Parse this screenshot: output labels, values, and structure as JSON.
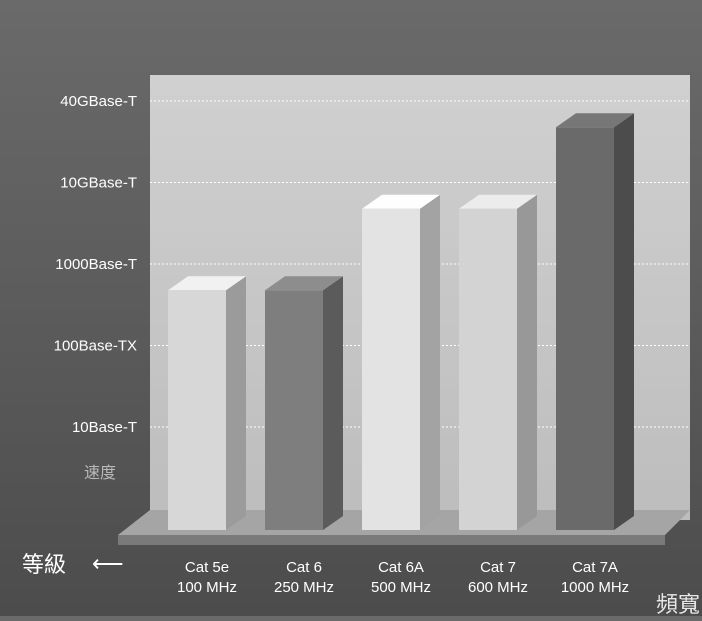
{
  "chart_data": {
    "type": "bar",
    "style": "3d",
    "y_levels": [
      "10Base-T",
      "100Base-TX",
      "1000Base-T",
      "10GBase-T",
      "40GBase-T"
    ],
    "categories": [
      {
        "name": "Cat 5e",
        "bandwidth": "100 MHz"
      },
      {
        "name": "Cat 6",
        "bandwidth": "250 MHz"
      },
      {
        "name": "Cat 6A",
        "bandwidth": "500 MHz"
      },
      {
        "name": "Cat 7",
        "bandwidth": "600 MHz"
      },
      {
        "name": "Cat 7A",
        "bandwidth": "1000 MHz"
      }
    ],
    "values": [
      2.8,
      2.8,
      3.8,
      3.8,
      4.8
    ],
    "ylabel": "速度",
    "x_axis_title": "等級",
    "arrow": "⟵",
    "corner_label": "頻寬",
    "grid": true,
    "colors": {
      "bars": [
        "#d7d7d7",
        "#7e7e7e",
        "#e3e3e3",
        "#d3d3d3",
        "#6a6a6a"
      ],
      "wall": "#c4c4c4",
      "floor": "#8f8f8f",
      "background": "#5e5e5e",
      "gridline": "#ffffff",
      "text": "#ffffff",
      "ylabel": "#b8b8b8"
    }
  }
}
